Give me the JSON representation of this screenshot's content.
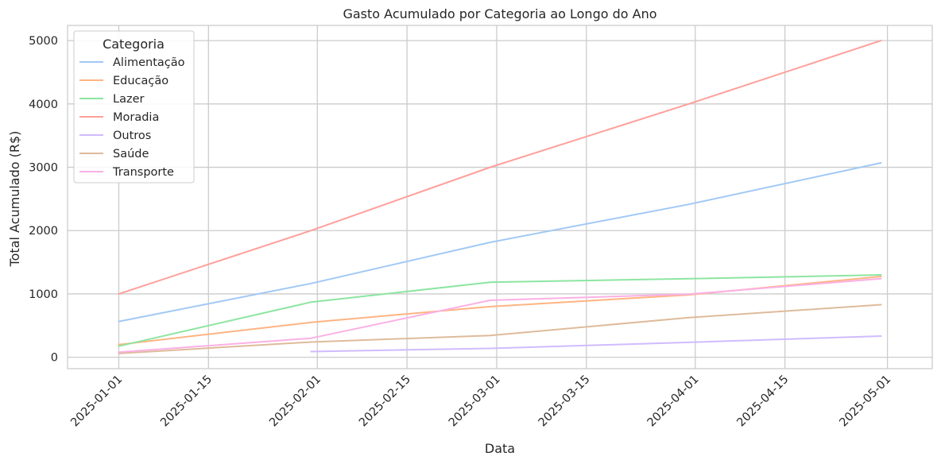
{
  "chart_data": {
    "type": "line",
    "title": "Gasto Acumulado por Categoria ao Longo do Ano",
    "xlabel": "Data",
    "ylabel": "Total Acumulado (R$)",
    "xlim": [
      "2024-12-24",
      "2025-05-08"
    ],
    "ylim": [
      -180,
      5240
    ],
    "x_ticks": [
      "2025-01-01",
      "2025-01-15",
      "2025-02-01",
      "2025-02-15",
      "2025-03-01",
      "2025-03-15",
      "2025-04-01",
      "2025-04-15",
      "2025-05-01"
    ],
    "y_ticks": [
      0,
      1000,
      2000,
      3000,
      4000,
      5000
    ],
    "grid": true,
    "legend": {
      "title": "Categoria",
      "position": "top-left"
    },
    "x": [
      "2025-01-01",
      "2025-01-31",
      "2025-02-28",
      "2025-03-31",
      "2025-04-30"
    ],
    "series": [
      {
        "name": "Alimentação",
        "color": "#a1c9f4",
        "values": [
          565,
          1165,
          1815,
          2415,
          3070
        ]
      },
      {
        "name": "Educação",
        "color": "#ffb482",
        "values": [
          200,
          550,
          800,
          985,
          1275
        ]
      },
      {
        "name": "Lazer",
        "color": "#8de5a1",
        "values": [
          175,
          870,
          1185,
          1240,
          1300
        ]
      },
      {
        "name": "Moradia",
        "color": "#ff9f9b",
        "values": [
          1000,
          2000,
          3000,
          4000,
          5000
        ]
      },
      {
        "name": "Outros",
        "color": "#d0bbff",
        "values": [
          null,
          90,
          140,
          235,
          335
        ]
      },
      {
        "name": "Saúde",
        "color": "#debb9b",
        "values": [
          60,
          240,
          345,
          625,
          830
        ]
      },
      {
        "name": "Transporte",
        "color": "#fab0e4",
        "values": [
          80,
          300,
          900,
          995,
          1240
        ]
      }
    ]
  }
}
